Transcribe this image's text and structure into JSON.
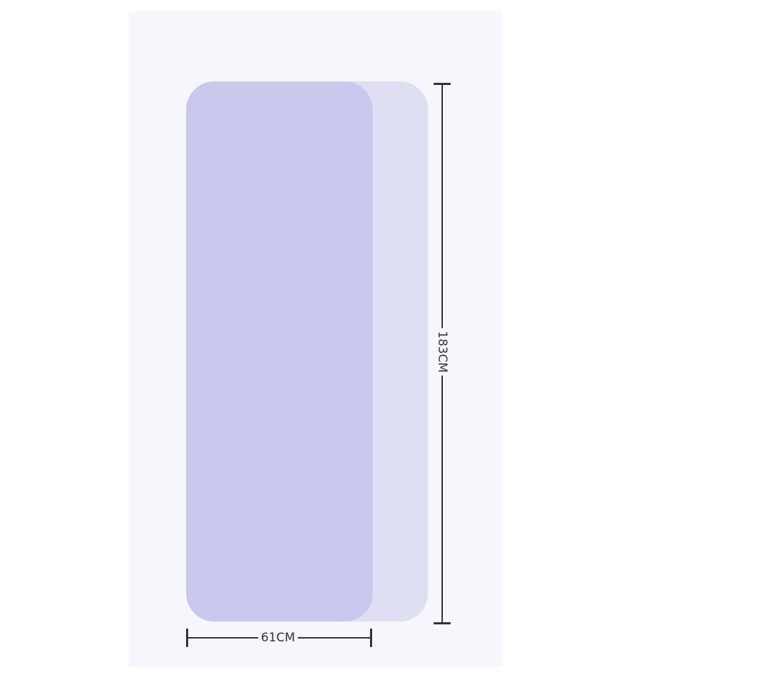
{
  "dimensions": {
    "length_label": "183CM",
    "width_label": "61CM"
  },
  "colors": {
    "background": "#f6f6fc",
    "mat_front": "#c9c9ed",
    "mat_back": "#dedff3",
    "dimension_line": "#333333"
  }
}
